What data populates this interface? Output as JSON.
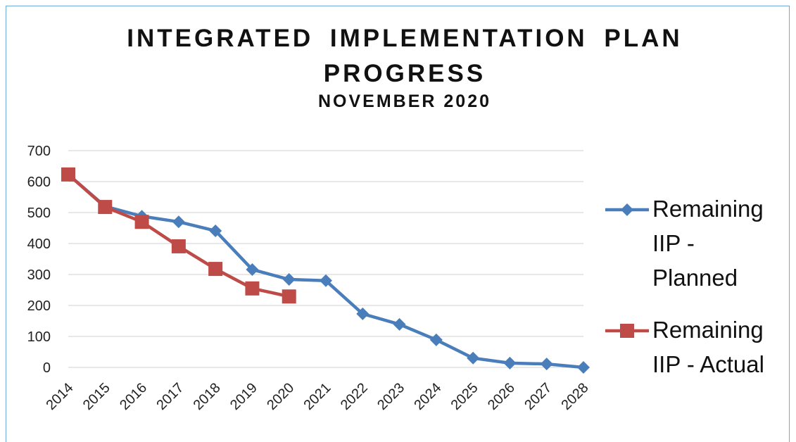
{
  "chart_data": {
    "type": "line",
    "title": "INTEGRATED IMPLEMENTATION PLAN PROGRESS",
    "subtitle": "NOVEMBER 2020",
    "categories": [
      "2014",
      "2015",
      "2016",
      "2017",
      "2018",
      "2019",
      "2020",
      "2021",
      "2022",
      "2023",
      "2024",
      "2025",
      "2026",
      "2027",
      "2028"
    ],
    "series": [
      {
        "name": "Remaining IIP - Planned",
        "color": "#4a7ebb",
        "marker": "diamond",
        "values": [
          623,
          520,
          488,
          470,
          441,
          316,
          284,
          280,
          173,
          139,
          89,
          30,
          14,
          11,
          0
        ]
      },
      {
        "name": "Remaining IIP - Actual",
        "color": "#be4b48",
        "marker": "square",
        "values": [
          623,
          518,
          470,
          391,
          318,
          255,
          229,
          null,
          null,
          null,
          null,
          null,
          null,
          null,
          null
        ]
      }
    ],
    "ylim": [
      0,
      700
    ],
    "yticks": [
      0,
      100,
      200,
      300,
      400,
      500,
      600,
      700
    ],
    "grid": true,
    "legend": "right"
  }
}
